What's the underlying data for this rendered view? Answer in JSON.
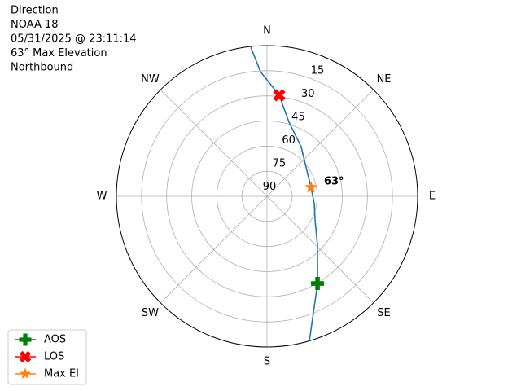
{
  "chart_data": {
    "type": "polar",
    "title_lines": [
      "Direction",
      "NOAA 18",
      "05/31/2025 @ 23:11:14",
      "63° Max Elevation",
      "Northbound"
    ],
    "rlim": [
      90,
      0
    ],
    "rticks": [
      90,
      75,
      60,
      45,
      30,
      15
    ],
    "thetaticks": [
      {
        "value": 0,
        "label": "N"
      },
      {
        "value": 45,
        "label": "NE"
      },
      {
        "value": 90,
        "label": "E"
      },
      {
        "value": 135,
        "label": "SE"
      },
      {
        "value": 180,
        "label": "S"
      },
      {
        "value": 225,
        "label": "SW"
      },
      {
        "value": 270,
        "label": "W"
      },
      {
        "value": 315,
        "label": "NW"
      }
    ],
    "grid": true,
    "track": {
      "color": "#1f77b4",
      "azimuth": [
        353.8,
        357,
        6.9,
        16.5,
        34.5,
        78.5,
        98.8,
        116.2,
        133.6,
        149.9,
        163.6
      ],
      "elevation": [
        0.5,
        15.5,
        29.2,
        43.8,
        54,
        63.2,
        61.4,
        58,
        48.4,
        29.8,
        0.2
      ]
    },
    "series": [
      {
        "name": "AOS",
        "color": "#008000",
        "marker": "plus",
        "azimuth": [
          149.9
        ],
        "elevation": [
          29.8
        ]
      },
      {
        "name": "LOS",
        "color": "#ff0000",
        "marker": "x",
        "azimuth": [
          6.9
        ],
        "elevation": [
          29.2
        ]
      },
      {
        "name": "Max El",
        "color": "#ff7f0e",
        "marker": "star",
        "azimuth": [
          78.5
        ],
        "elevation": [
          63.2
        ]
      }
    ],
    "annotation": {
      "text": "63°"
    },
    "legend": "lower left"
  }
}
